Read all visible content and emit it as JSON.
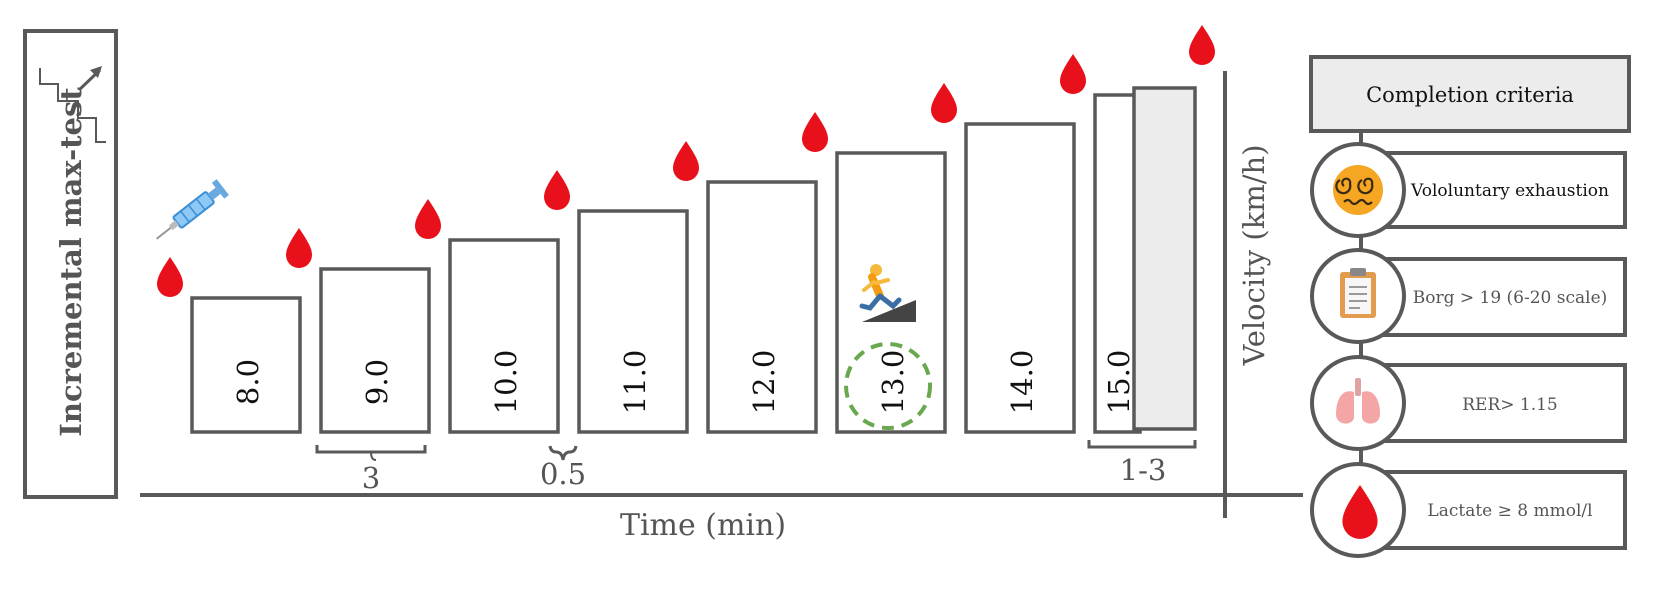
{
  "protocol": {
    "title": "Incremental max-test",
    "stage_velocities": [
      "8.0",
      "9.0",
      "10.0",
      "11.0",
      "12.0",
      "13.0",
      "14.0",
      "15.0"
    ],
    "stage_duration": "3",
    "rest_duration": "0.5",
    "final_duration": "1-3",
    "x_axis_label": "Time (min)",
    "y_axis_label": "Velocity (km/h)",
    "highlighted_stage": "13.0",
    "blood_sample_count": 9
  },
  "icons": {
    "staircase": "staircase-arrow-icon",
    "syringe": "syringe-icon",
    "blood_drop": "blood-drop-icon",
    "runner": "incline-runner-icon"
  },
  "completion_criteria": {
    "header": "Completion criteria",
    "items": [
      {
        "icon": "dizzy-face-icon",
        "label": "Vololuntary exhaustion"
      },
      {
        "icon": "clipboard-icon",
        "label": "Borg > 19 (6-20 scale)"
      },
      {
        "icon": "lungs-icon",
        "label": "RER> 1.15"
      },
      {
        "icon": "blood-drop-icon",
        "label": "Lactate ≥ 8 mmol/l"
      }
    ]
  },
  "colors": {
    "line": "#595959",
    "blood": "#e8101b",
    "highlight_circle": "#6aa84f",
    "final_fill": "#ececec",
    "header_fill": "#ececec"
  }
}
